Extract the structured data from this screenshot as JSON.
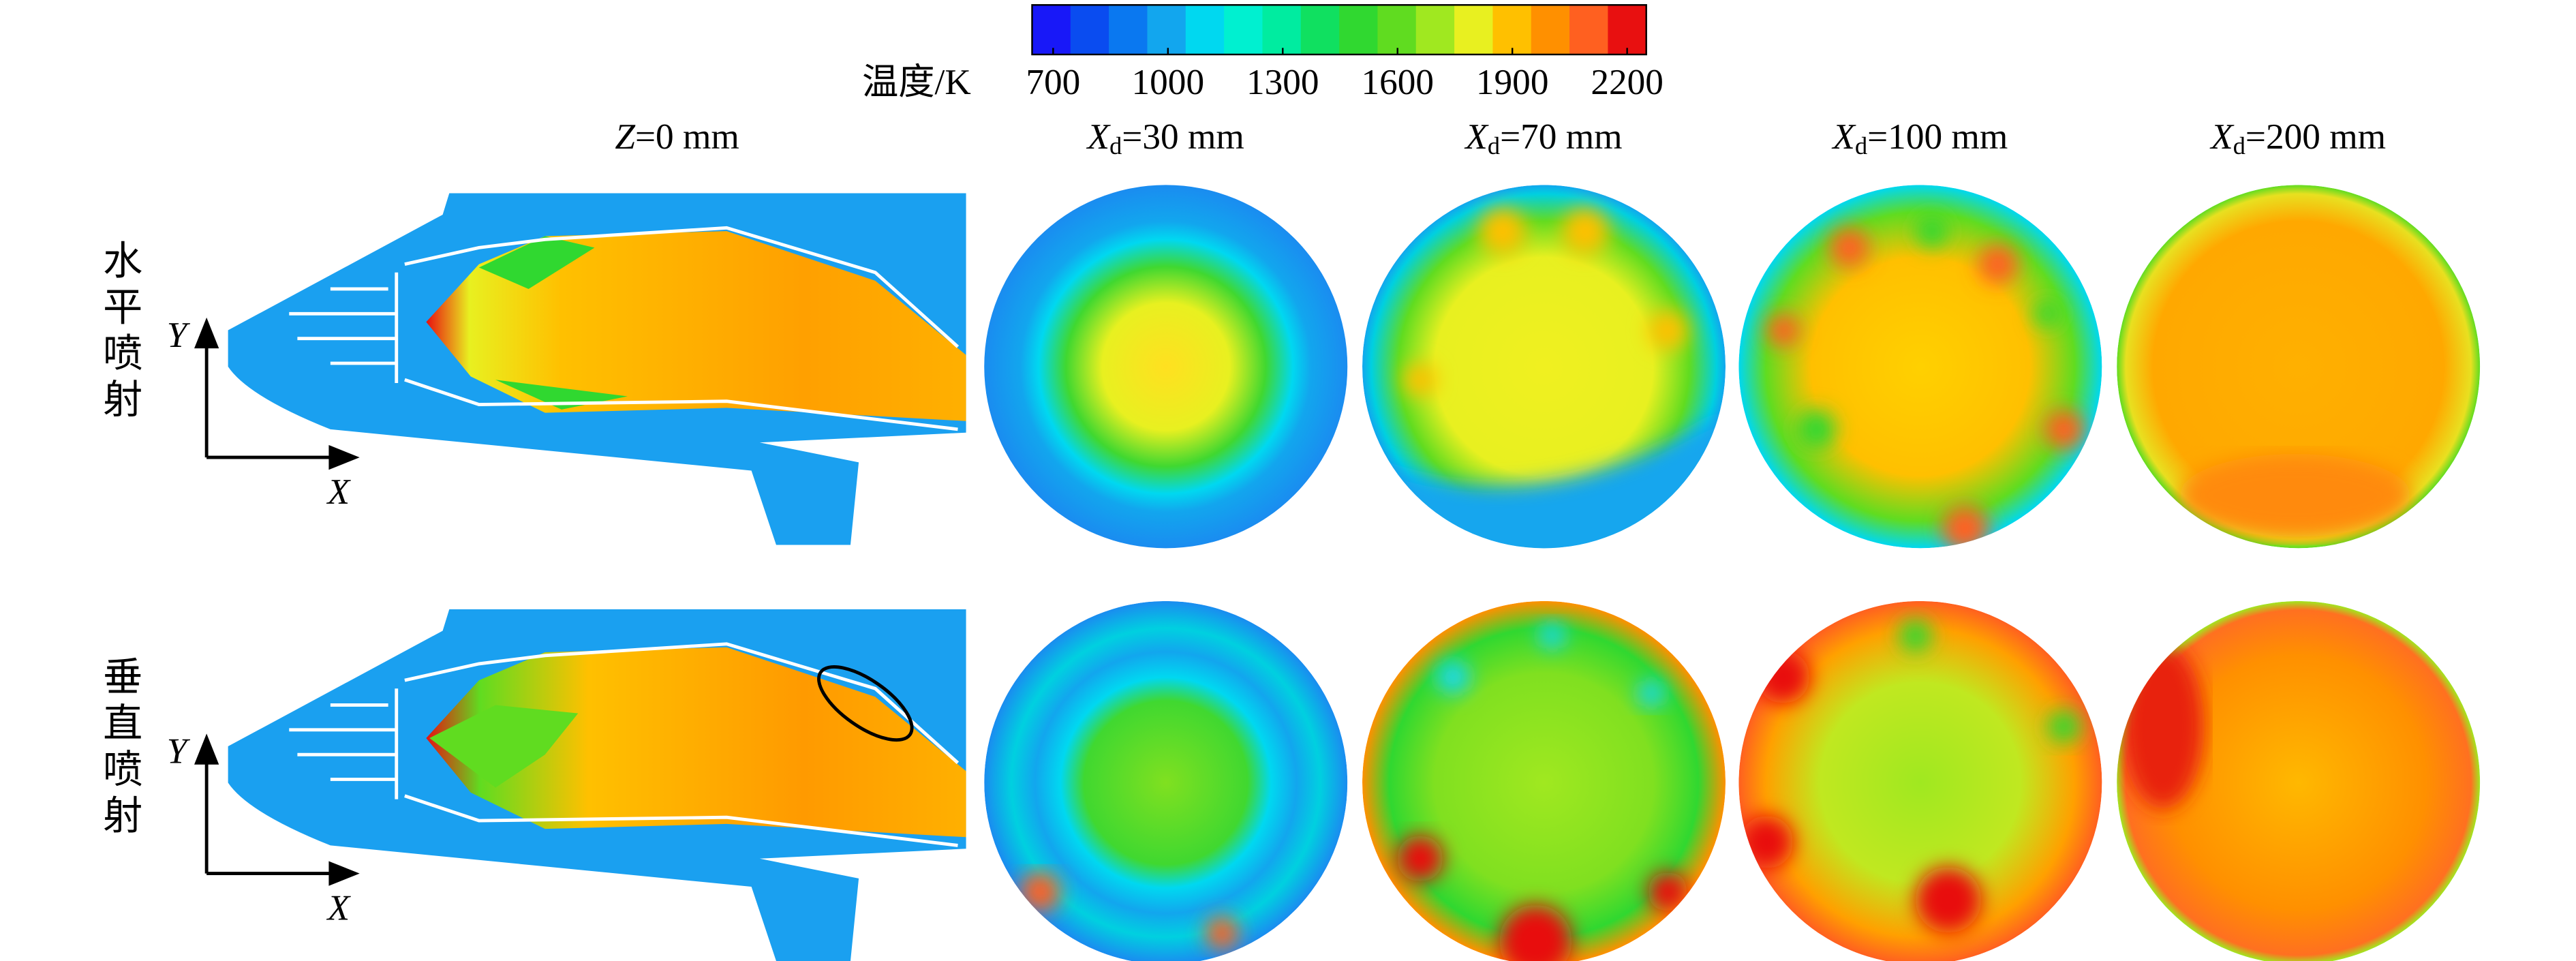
{
  "colorbar": {
    "label": "温度/K",
    "range": [
      645,
      2250
    ],
    "ticks": [
      700,
      1000,
      1300,
      1600,
      1900,
      2200
    ],
    "colors": [
      "#1818f8",
      "#0a4cf0",
      "#0a78f0",
      "#12a6ee",
      "#00d8f0",
      "#00f0d0",
      "#00eca0",
      "#10e060",
      "#30d830",
      "#60dc20",
      "#a0e820",
      "#e8f020",
      "#ffc000",
      "#ff9000",
      "#ff6020",
      "#e81010"
    ]
  },
  "columns": [
    {
      "var": "Z",
      "rest": "=0 mm"
    },
    {
      "var": "X",
      "sub": "d",
      "rest": "=30 mm"
    },
    {
      "var": "X",
      "sub": "d",
      "rest": "=70 mm"
    },
    {
      "var": "X",
      "sub": "d",
      "rest": "=100 mm"
    },
    {
      "var": "X",
      "sub": "d",
      "rest": "=200 mm"
    }
  ],
  "rows": [
    {
      "label": "水平喷射",
      "y_axis": "Y",
      "x_axis": "X"
    },
    {
      "label": "垂直喷射",
      "y_axis": "Y",
      "x_axis": "X"
    }
  ]
}
